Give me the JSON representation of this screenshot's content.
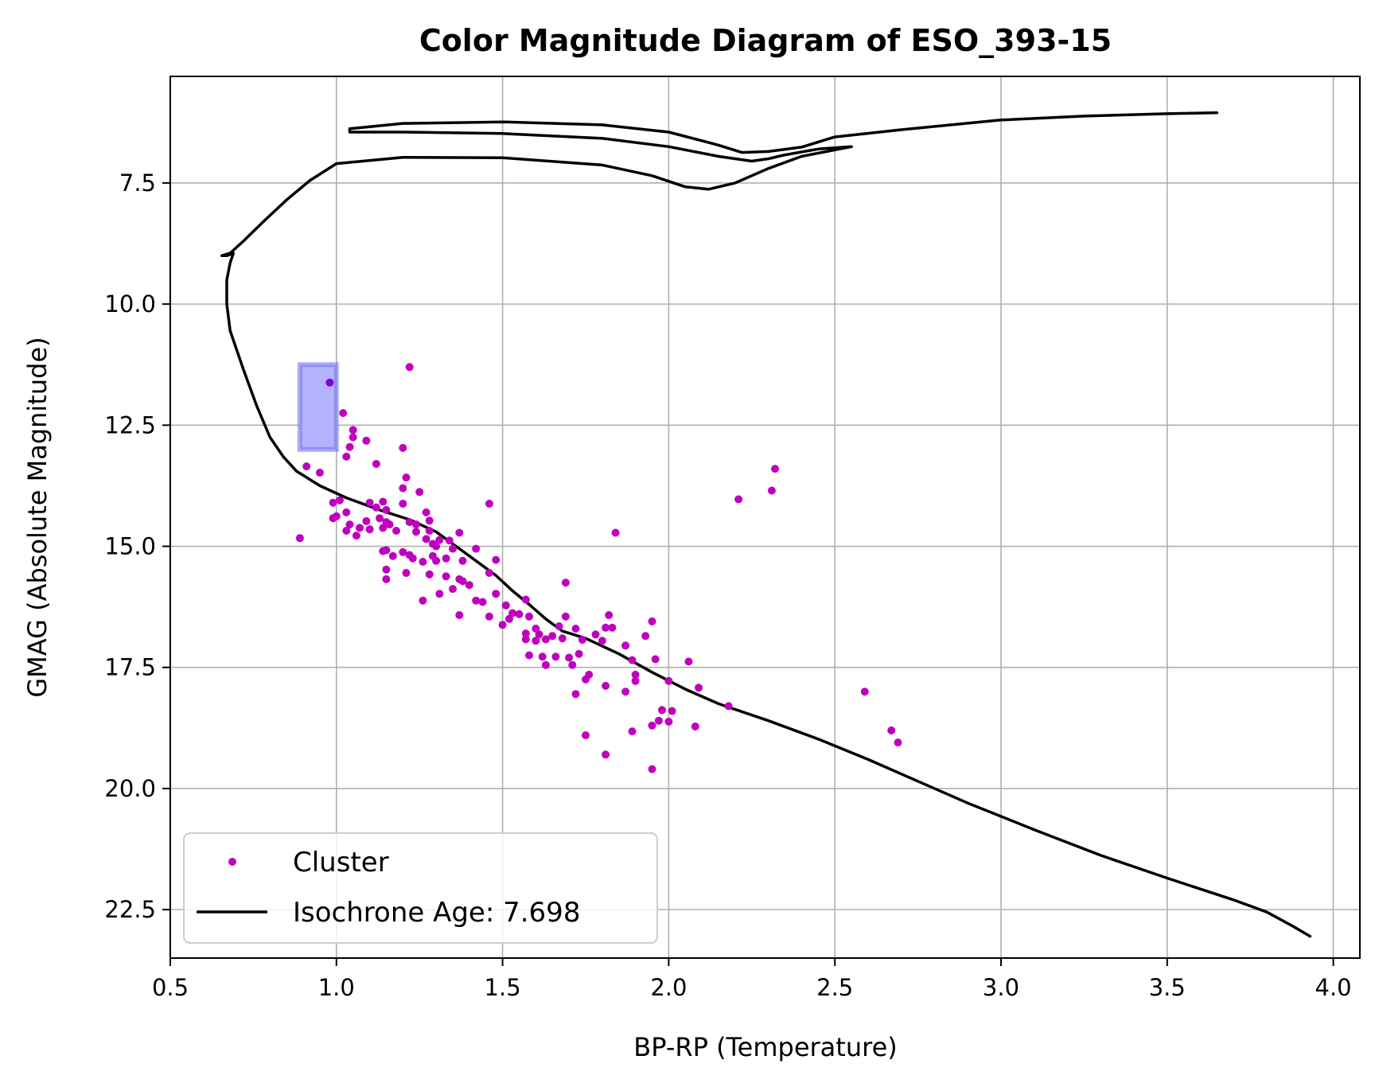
{
  "chart_data": {
    "type": "scatter",
    "title": "Color Magnitude Diagram of ESO_393-15",
    "xlabel": "BP-RP (Temperature)",
    "ylabel": "GMAG (Absolute Magnitude)",
    "xlim": [
      0.5,
      4.08
    ],
    "ylim": [
      23.5,
      5.3
    ],
    "y_inverted": true,
    "grid": true,
    "legend_position": "lower-left",
    "x_ticks": [
      0.5,
      1.0,
      1.5,
      2.0,
      2.5,
      3.0,
      3.5,
      4.0
    ],
    "x_tick_labels": [
      "0.5",
      "1.0",
      "1.5",
      "2.0",
      "2.5",
      "3.0",
      "3.5",
      "4.0"
    ],
    "y_ticks": [
      7.5,
      10.0,
      12.5,
      15.0,
      17.5,
      20.0,
      22.5
    ],
    "y_tick_labels": [
      "7.5",
      "10.0",
      "12.5",
      "15.0",
      "17.5",
      "20.0",
      "22.5"
    ],
    "colors": {
      "cluster": "#bf00bf",
      "isochrone": "#000000",
      "highlight_fill": "#b3b3ff",
      "highlight_edge": "#7777ee",
      "highlighted_point": "#7f00df",
      "grid": "#b0b0b0"
    },
    "series": [
      {
        "name": "Cluster",
        "kind": "scatter",
        "points": [
          [
            1.22,
            11.3
          ],
          [
            0.98,
            11.62
          ],
          [
            1.02,
            12.25
          ],
          [
            1.05,
            12.6
          ],
          [
            1.05,
            12.75
          ],
          [
            1.09,
            12.82
          ],
          [
            1.04,
            12.95
          ],
          [
            1.2,
            12.97
          ],
          [
            1.03,
            13.15
          ],
          [
            1.12,
            13.3
          ],
          [
            0.91,
            13.35
          ],
          [
            0.95,
            13.48
          ],
          [
            1.21,
            13.58
          ],
          [
            2.32,
            13.4
          ],
          [
            1.2,
            13.8
          ],
          [
            2.31,
            13.85
          ],
          [
            1.25,
            13.88
          ],
          [
            2.21,
            14.03
          ],
          [
            1.01,
            14.05
          ],
          [
            0.99,
            14.1
          ],
          [
            1.1,
            14.1
          ],
          [
            1.14,
            14.08
          ],
          [
            1.2,
            14.12
          ],
          [
            1.46,
            14.12
          ],
          [
            1.12,
            14.2
          ],
          [
            1.15,
            14.25
          ],
          [
            1.03,
            14.3
          ],
          [
            1.27,
            14.3
          ],
          [
            1.0,
            14.38
          ],
          [
            0.99,
            14.42
          ],
          [
            1.09,
            14.48
          ],
          [
            1.13,
            14.42
          ],
          [
            1.15,
            14.5
          ],
          [
            1.22,
            14.5
          ],
          [
            1.24,
            14.55
          ],
          [
            1.28,
            14.47
          ],
          [
            1.04,
            14.55
          ],
          [
            1.07,
            14.62
          ],
          [
            1.14,
            14.62
          ],
          [
            1.16,
            14.55
          ],
          [
            1.03,
            14.68
          ],
          [
            1.1,
            14.65
          ],
          [
            1.18,
            14.68
          ],
          [
            1.24,
            14.7
          ],
          [
            1.28,
            14.68
          ],
          [
            1.37,
            14.72
          ],
          [
            1.06,
            14.78
          ],
          [
            0.89,
            14.83
          ],
          [
            1.84,
            14.72
          ],
          [
            1.27,
            14.85
          ],
          [
            1.31,
            14.87
          ],
          [
            1.34,
            14.88
          ],
          [
            1.29,
            14.95
          ],
          [
            1.3,
            15.0
          ],
          [
            1.35,
            15.05
          ],
          [
            1.42,
            15.05
          ],
          [
            1.15,
            15.08
          ],
          [
            1.2,
            15.12
          ],
          [
            1.22,
            15.18
          ],
          [
            1.17,
            15.2
          ],
          [
            1.14,
            15.1
          ],
          [
            1.29,
            15.2
          ],
          [
            1.23,
            15.25
          ],
          [
            1.3,
            15.3
          ],
          [
            1.26,
            15.32
          ],
          [
            1.33,
            15.25
          ],
          [
            1.38,
            15.3
          ],
          [
            1.48,
            15.28
          ],
          [
            1.15,
            15.48
          ],
          [
            1.21,
            15.55
          ],
          [
            1.28,
            15.58
          ],
          [
            1.33,
            15.62
          ],
          [
            1.46,
            15.55
          ],
          [
            1.15,
            15.68
          ],
          [
            1.37,
            15.68
          ],
          [
            1.38,
            15.72
          ],
          [
            1.4,
            15.8
          ],
          [
            1.35,
            15.88
          ],
          [
            1.69,
            15.75
          ],
          [
            1.31,
            15.98
          ],
          [
            1.48,
            15.98
          ],
          [
            1.26,
            16.12
          ],
          [
            1.42,
            16.12
          ],
          [
            1.44,
            16.15
          ],
          [
            1.57,
            16.1
          ],
          [
            1.51,
            16.22
          ],
          [
            1.53,
            16.38
          ],
          [
            1.55,
            16.4
          ],
          [
            1.37,
            16.42
          ],
          [
            1.46,
            16.45
          ],
          [
            1.58,
            16.45
          ],
          [
            1.52,
            16.5
          ],
          [
            1.82,
            16.42
          ],
          [
            1.69,
            16.45
          ],
          [
            1.5,
            16.62
          ],
          [
            1.67,
            16.65
          ],
          [
            1.95,
            16.55
          ],
          [
            1.6,
            16.7
          ],
          [
            1.72,
            16.7
          ],
          [
            1.83,
            16.68
          ],
          [
            1.57,
            16.8
          ],
          [
            1.61,
            16.82
          ],
          [
            1.65,
            16.85
          ],
          [
            1.81,
            16.68
          ],
          [
            1.78,
            16.82
          ],
          [
            1.93,
            16.85
          ],
          [
            1.57,
            16.92
          ],
          [
            1.6,
            16.95
          ],
          [
            1.63,
            16.92
          ],
          [
            1.68,
            16.9
          ],
          [
            1.74,
            16.93
          ],
          [
            1.8,
            16.95
          ],
          [
            1.87,
            17.05
          ],
          [
            1.58,
            17.25
          ],
          [
            1.62,
            17.28
          ],
          [
            1.66,
            17.28
          ],
          [
            1.7,
            17.3
          ],
          [
            1.73,
            17.22
          ],
          [
            1.89,
            17.35
          ],
          [
            1.96,
            17.33
          ],
          [
            2.06,
            17.38
          ],
          [
            1.63,
            17.45
          ],
          [
            1.71,
            17.45
          ],
          [
            1.76,
            17.65
          ],
          [
            1.9,
            17.65
          ],
          [
            1.75,
            17.75
          ],
          [
            1.9,
            17.78
          ],
          [
            2.0,
            17.78
          ],
          [
            1.81,
            17.88
          ],
          [
            2.09,
            17.92
          ],
          [
            1.72,
            18.05
          ],
          [
            1.87,
            18.0
          ],
          [
            2.59,
            18.0
          ],
          [
            2.18,
            18.3
          ],
          [
            1.98,
            18.38
          ],
          [
            2.01,
            18.4
          ],
          [
            1.97,
            18.6
          ],
          [
            2.0,
            18.62
          ],
          [
            1.95,
            18.7
          ],
          [
            2.08,
            18.72
          ],
          [
            1.89,
            18.82
          ],
          [
            1.75,
            18.9
          ],
          [
            2.67,
            18.8
          ],
          [
            2.69,
            19.05
          ],
          [
            1.81,
            19.3
          ],
          [
            1.95,
            19.6
          ]
        ]
      },
      {
        "name": "Isochrone Age: 7.698",
        "kind": "line",
        "points": [
          [
            3.93,
            23.05
          ],
          [
            3.88,
            22.85
          ],
          [
            3.8,
            22.55
          ],
          [
            3.7,
            22.3
          ],
          [
            3.5,
            21.85
          ],
          [
            3.3,
            21.38
          ],
          [
            3.1,
            20.85
          ],
          [
            2.9,
            20.3
          ],
          [
            2.75,
            19.85
          ],
          [
            2.6,
            19.4
          ],
          [
            2.45,
            18.98
          ],
          [
            2.3,
            18.6
          ],
          [
            2.15,
            18.25
          ],
          [
            2.05,
            17.95
          ],
          [
            1.95,
            17.6
          ],
          [
            1.85,
            17.22
          ],
          [
            1.75,
            16.9
          ],
          [
            1.68,
            16.75
          ],
          [
            1.63,
            16.5
          ],
          [
            1.58,
            16.2
          ],
          [
            1.53,
            15.92
          ],
          [
            1.48,
            15.6
          ],
          [
            1.42,
            15.3
          ],
          [
            1.36,
            15.0
          ],
          [
            1.3,
            14.7
          ],
          [
            1.22,
            14.45
          ],
          [
            1.13,
            14.25
          ],
          [
            1.03,
            14.0
          ],
          [
            0.95,
            13.75
          ],
          [
            0.88,
            13.45
          ],
          [
            0.84,
            13.15
          ],
          [
            0.8,
            12.75
          ],
          [
            0.76,
            12.1
          ],
          [
            0.72,
            11.35
          ],
          [
            0.68,
            10.55
          ],
          [
            0.67,
            10.0
          ],
          [
            0.67,
            9.5
          ],
          [
            0.68,
            9.15
          ],
          [
            0.69,
            8.95
          ],
          [
            0.67,
            9.0
          ],
          [
            0.655,
            9.0
          ],
          [
            0.68,
            8.95
          ],
          [
            0.72,
            8.7
          ],
          [
            0.78,
            8.3
          ],
          [
            0.85,
            7.85
          ],
          [
            0.92,
            7.45
          ],
          [
            1.0,
            7.1
          ],
          [
            1.2,
            6.97
          ],
          [
            1.5,
            6.98
          ],
          [
            1.8,
            7.13
          ],
          [
            1.95,
            7.35
          ],
          [
            2.05,
            7.58
          ],
          [
            2.12,
            7.63
          ],
          [
            2.2,
            7.5
          ],
          [
            2.3,
            7.2
          ],
          [
            2.4,
            6.95
          ],
          [
            2.55,
            6.75
          ],
          [
            2.45,
            6.8
          ],
          [
            2.35,
            6.92
          ],
          [
            2.3,
            7.0
          ],
          [
            2.25,
            7.05
          ],
          [
            2.15,
            6.95
          ],
          [
            2.0,
            6.75
          ],
          [
            1.8,
            6.58
          ],
          [
            1.5,
            6.48
          ],
          [
            1.2,
            6.45
          ],
          [
            1.04,
            6.45
          ],
          [
            1.04,
            6.38
          ],
          [
            1.2,
            6.27
          ],
          [
            1.5,
            6.24
          ],
          [
            1.8,
            6.3
          ],
          [
            2.0,
            6.45
          ],
          [
            2.15,
            6.72
          ],
          [
            2.22,
            6.87
          ],
          [
            2.3,
            6.85
          ],
          [
            2.4,
            6.76
          ],
          [
            2.5,
            6.55
          ],
          [
            2.7,
            6.4
          ],
          [
            3.0,
            6.2
          ],
          [
            3.25,
            6.12
          ],
          [
            3.5,
            6.07
          ],
          [
            3.65,
            6.05
          ]
        ]
      }
    ],
    "highlight_box": {
      "x": [
        0.89,
        1.0
      ],
      "y": [
        11.25,
        13.0
      ]
    }
  },
  "legend": {
    "cluster_label": "Cluster",
    "isochrone_label": "Isochrone Age: 7.698"
  }
}
